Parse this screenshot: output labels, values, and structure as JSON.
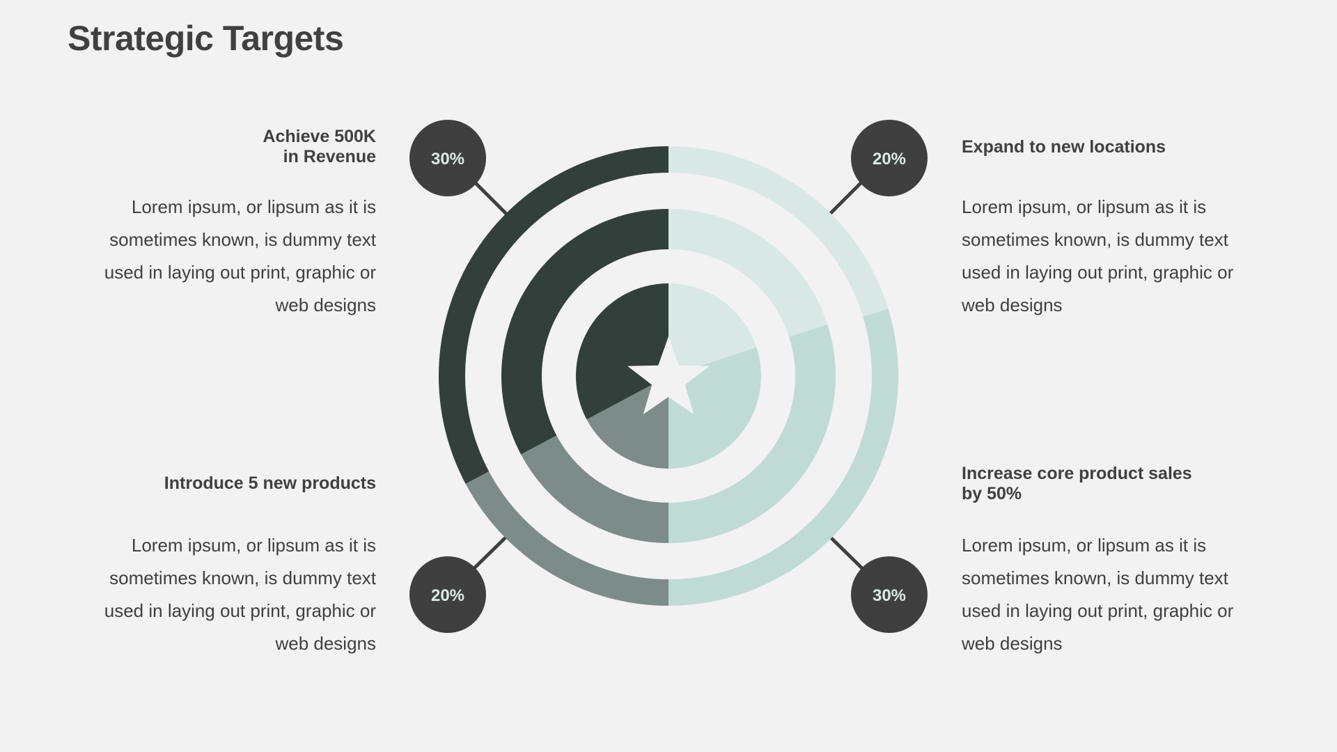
{
  "title": "Strategic Targets",
  "colors": {
    "background": "#f2f2f2",
    "dark": "#323f3b",
    "mid": "#7d8c88",
    "light": "#dae8e5",
    "light_mid": "#c0dbd6",
    "bubble": "#3f3f3f",
    "bubble_text": "#d9ebe6"
  },
  "center_icon": "star-icon",
  "targets": [
    {
      "heading_lines": [
        "Achieve 500K",
        "in Revenue"
      ],
      "percent": "30%",
      "description": "Lorem ipsum, or lipsum as it is sometimes known, is dummy text used in laying out print, graphic or web designs"
    },
    {
      "heading_lines": [
        "Expand to new locations"
      ],
      "percent": "20%",
      "description": "Lorem ipsum, or lipsum as it is sometimes known, is dummy text used in laying out print, graphic or web designs"
    },
    {
      "heading_lines": [
        "Introduce 5 new products"
      ],
      "percent": "20%",
      "description": "Lorem ipsum, or lipsum as it is sometimes known, is dummy text used in laying out print, graphic or web designs"
    },
    {
      "heading_lines": [
        "Increase core product sales",
        "by 50%"
      ],
      "percent": "30%",
      "description": "Lorem ipsum, or lipsum as it is sometimes known, is dummy text used in laying out print, graphic or web designs"
    }
  ]
}
